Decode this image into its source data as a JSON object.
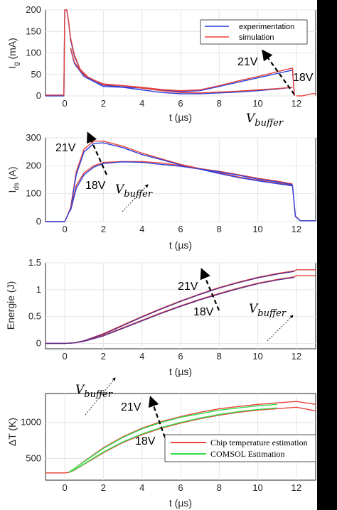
{
  "colors": {
    "blue": "#2b3fdd",
    "red": "#e8423b",
    "green": "#33e04a",
    "purple": "#5a2d8c",
    "axis": "#262626",
    "grid": "#e4e4e4"
  },
  "chart_data": [
    {
      "type": "line",
      "xlabel": "t (µs)",
      "ylabel": "I_g (mA)",
      "ylabel_main": "I",
      "ylabel_sub": "g",
      "ylabel_rest": " (mA)",
      "xlim": [
        -1,
        13
      ],
      "ylim": [
        0,
        200
      ],
      "xticks": [
        "0",
        "2",
        "4",
        "6",
        "8",
        "10",
        "12"
      ],
      "yticks": [
        "0",
        "50",
        "100",
        "150",
        "200"
      ],
      "legend": [
        "experimentation",
        "simulation"
      ],
      "annotations": {
        "high": "21V",
        "low": "18V",
        "param": "V",
        "param_sub": "buffer"
      },
      "series": [
        {
          "name": "experimentation",
          "color": "blue",
          "x": [
            -1,
            -0.05,
            0,
            0.1,
            0.2,
            0.3,
            0.5,
            0.8,
            1.2,
            1.6,
            2,
            3,
            4,
            5,
            6,
            7,
            8,
            9,
            10,
            11,
            11.8,
            11.9
          ],
          "y": [
            -5,
            -5,
            200,
            200,
            170,
            130,
            92,
            60,
            42,
            32,
            25,
            21,
            18,
            14,
            10,
            12,
            22,
            32,
            42,
            52,
            60,
            0
          ]
        },
        {
          "name": "simulation",
          "color": "red",
          "x": [
            -1,
            -0.05,
            0,
            0.1,
            0.2,
            0.3,
            0.5,
            0.8,
            1.2,
            1.6,
            2,
            3,
            4,
            5,
            6,
            7,
            8,
            9,
            10,
            11,
            11.8,
            11.9
          ],
          "y": [
            2,
            2,
            200,
            200,
            172,
            135,
            95,
            62,
            44,
            35,
            28,
            24,
            20,
            15,
            12,
            14,
            24,
            35,
            45,
            56,
            65,
            0
          ]
        },
        {
          "name": "",
          "color": "blue",
          "x": [
            0.3,
            0.5,
            1,
            2,
            3,
            4,
            5,
            6,
            7,
            8,
            9,
            10,
            11,
            11.8
          ],
          "y": [
            110,
            75,
            45,
            22,
            20,
            14,
            8,
            5,
            5,
            7,
            9,
            12,
            16,
            20
          ]
        },
        {
          "name": "",
          "color": "red",
          "x": [
            0.3,
            0.5,
            1,
            2,
            3,
            4,
            5,
            6,
            7,
            8,
            9,
            10,
            11,
            11.8
          ],
          "y": [
            112,
            78,
            48,
            26,
            24,
            18,
            12,
            8,
            7,
            9,
            11,
            14,
            17,
            20
          ]
        },
        {
          "name": "",
          "color": "red",
          "x": [
            12,
            12.3,
            12.5,
            12.8,
            13
          ],
          "y": [
            -5,
            -5,
            2,
            5,
            5
          ]
        }
      ]
    },
    {
      "type": "line",
      "xlabel": "t (µs)",
      "ylabel": "I_ds (A)",
      "ylabel_main": "I",
      "ylabel_sub": "ds",
      "ylabel_rest": " (A)",
      "xlim": [
        -1,
        13
      ],
      "ylim": [
        0,
        300
      ],
      "xticks": [
        "0",
        "2",
        "4",
        "6",
        "8",
        "10",
        "12"
      ],
      "yticks": [
        "0",
        "100",
        "200",
        "300"
      ],
      "annotations": {
        "high": "21V",
        "low": "18V",
        "param": "V",
        "param_sub": "buffer"
      },
      "series": [
        {
          "name": "",
          "color": "red",
          "x": [
            -1,
            0,
            0.3,
            0.6,
            1,
            1.5,
            2,
            3,
            4,
            5,
            6,
            7,
            8,
            9,
            10,
            11,
            11.8,
            11.95,
            12.2,
            13
          ],
          "y": [
            0,
            0,
            50,
            180,
            260,
            288,
            288,
            270,
            245,
            225,
            205,
            190,
            175,
            160,
            148,
            138,
            130,
            20,
            3,
            3
          ]
        },
        {
          "name": "",
          "color": "blue",
          "x": [
            -1,
            0,
            0.3,
            0.6,
            1,
            1.5,
            2,
            3,
            4,
            5,
            6,
            7,
            8,
            9,
            10,
            11,
            11.8,
            11.95,
            12.2,
            13
          ],
          "y": [
            0,
            0,
            45,
            170,
            250,
            280,
            282,
            265,
            240,
            222,
            202,
            188,
            172,
            158,
            146,
            136,
            128,
            18,
            3,
            3
          ]
        },
        {
          "name": "",
          "color": "red",
          "x": [
            0.3,
            0.6,
            1,
            1.5,
            2,
            3,
            4,
            5,
            6,
            7,
            8,
            9,
            10,
            11,
            11.8
          ],
          "y": [
            45,
            130,
            175,
            200,
            212,
            215,
            215,
            210,
            200,
            190,
            180,
            168,
            155,
            145,
            135
          ]
        },
        {
          "name": "",
          "color": "blue",
          "x": [
            0.3,
            0.6,
            1,
            1.5,
            2,
            3,
            4,
            5,
            6,
            7,
            8,
            9,
            10,
            11,
            11.8
          ],
          "y": [
            40,
            120,
            168,
            195,
            208,
            214,
            212,
            205,
            198,
            188,
            178,
            166,
            152,
            142,
            132
          ]
        }
      ]
    },
    {
      "type": "line",
      "xlabel": "t (µs)",
      "ylabel": "Energie (J)",
      "xlim": [
        -1,
        13
      ],
      "ylim": [
        -0.1,
        1.5
      ],
      "xticks": [
        "0",
        "2",
        "4",
        "6",
        "8",
        "10",
        "12"
      ],
      "yticks": [
        "0",
        "0.5",
        "1",
        "1.5"
      ],
      "annotations": {
        "high": "21V",
        "low": "18V",
        "param": "V",
        "param_sub": "buffer"
      },
      "series": [
        {
          "name": "",
          "color": "red",
          "x": [
            -1,
            0,
            0.5,
            1,
            2,
            3,
            4,
            5,
            6,
            7,
            8,
            9,
            10,
            11,
            11.9,
            12,
            13
          ],
          "y": [
            0,
            0,
            0.01,
            0.05,
            0.18,
            0.34,
            0.5,
            0.65,
            0.79,
            0.92,
            1.04,
            1.14,
            1.23,
            1.3,
            1.35,
            1.37,
            1.37
          ]
        },
        {
          "name": "",
          "color": "purple",
          "x": [
            -1,
            0,
            0.5,
            1,
            2,
            3,
            4,
            5,
            6,
            7,
            8,
            9,
            10,
            11,
            11.9
          ],
          "y": [
            0,
            0,
            0.01,
            0.05,
            0.17,
            0.33,
            0.49,
            0.64,
            0.78,
            0.91,
            1.03,
            1.13,
            1.22,
            1.29,
            1.34
          ]
        },
        {
          "name": "",
          "color": "red",
          "x": [
            -1,
            0,
            0.5,
            1,
            2,
            3,
            4,
            5,
            6,
            7,
            8,
            9,
            10,
            11,
            11.9,
            12,
            13
          ],
          "y": [
            0,
            0,
            0.01,
            0.04,
            0.15,
            0.29,
            0.43,
            0.57,
            0.7,
            0.82,
            0.93,
            1.03,
            1.12,
            1.19,
            1.24,
            1.26,
            1.26
          ]
        },
        {
          "name": "",
          "color": "purple",
          "x": [
            -1,
            0,
            0.5,
            1,
            2,
            3,
            4,
            5,
            6,
            7,
            8,
            9,
            10,
            11,
            11.9
          ],
          "y": [
            0,
            0,
            0.01,
            0.04,
            0.14,
            0.28,
            0.42,
            0.56,
            0.69,
            0.81,
            0.92,
            1.02,
            1.11,
            1.18,
            1.23
          ]
        }
      ]
    },
    {
      "type": "line",
      "xlabel": "t (µs)",
      "ylabel": "ΔT (K)",
      "xlim": [
        -1,
        13
      ],
      "ylim": [
        200,
        1400
      ],
      "xticks": [
        "0",
        "2",
        "4",
        "6",
        "8",
        "10",
        "12"
      ],
      "yticks": [
        "500",
        "1000"
      ],
      "legend": [
        "Chip temperature estimation",
        "COMSOL Estimation"
      ],
      "annotations": {
        "high": "21V",
        "low": "18V",
        "param": "V",
        "param_sub": "buffer"
      },
      "series": [
        {
          "name": "Chip temperature estimation",
          "color": "red",
          "x": [
            -1,
            0,
            0.2,
            0.5,
            1,
            2,
            3,
            4,
            5,
            6,
            7,
            8,
            9,
            10,
            11,
            12,
            13
          ],
          "y": [
            300,
            300,
            310,
            360,
            460,
            650,
            800,
            920,
            1010,
            1080,
            1140,
            1190,
            1220,
            1250,
            1270,
            1290,
            1250
          ]
        },
        {
          "name": "",
          "color": "red",
          "x": [
            -1,
            0,
            0.2,
            0.5,
            1,
            2,
            3,
            4,
            5,
            6,
            7,
            8,
            9,
            10,
            11,
            12,
            13
          ],
          "y": [
            300,
            300,
            305,
            340,
            420,
            580,
            720,
            830,
            920,
            990,
            1050,
            1100,
            1140,
            1170,
            1190,
            1210,
            1160
          ]
        },
        {
          "name": "COMSOL Estimation",
          "color": "green",
          "x": [
            0.2,
            0.5,
            1,
            2,
            3,
            4,
            5,
            6,
            7,
            8,
            9,
            10,
            11
          ],
          "y": [
            310,
            360,
            455,
            640,
            790,
            910,
            1000,
            1070,
            1120,
            1170,
            1200,
            1230,
            1250
          ]
        },
        {
          "name": "",
          "color": "green",
          "x": [
            0.2,
            0.5,
            1,
            2,
            3,
            4,
            5,
            6,
            7,
            8,
            9,
            10,
            11
          ],
          "y": [
            305,
            345,
            425,
            590,
            730,
            840,
            930,
            1000,
            1060,
            1110,
            1150,
            1180,
            1200
          ]
        }
      ]
    }
  ]
}
